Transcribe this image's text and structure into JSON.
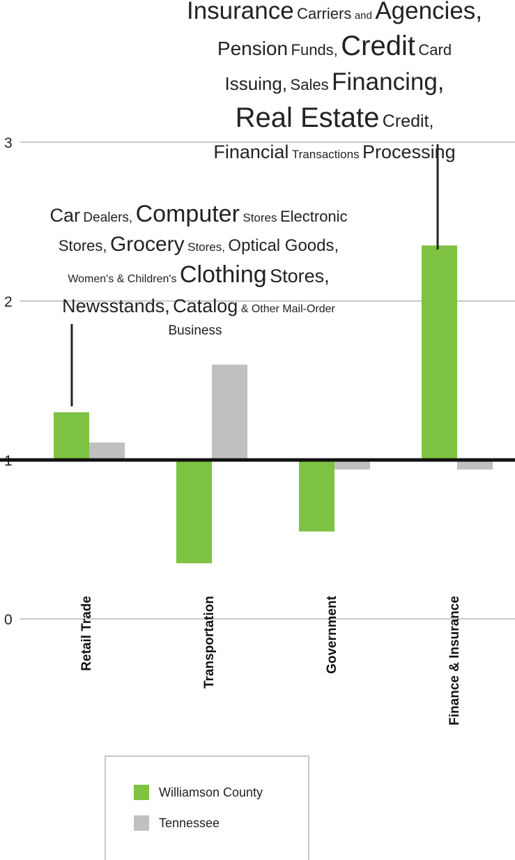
{
  "chart_data": {
    "type": "bar",
    "categories": [
      "Retail Trade",
      "Transportation",
      "Government",
      "Finance & Insurance"
    ],
    "series": [
      {
        "name": "Williamson County",
        "color": "#7dc242",
        "values": [
          1.3,
          0.35,
          0.55,
          2.35
        ]
      },
      {
        "name": "Tennessee",
        "color": "#c0c0c0",
        "values": [
          1.11,
          1.6,
          0.94,
          0.94
        ]
      }
    ],
    "baseline": 1,
    "ylim": [
      0,
      3
    ],
    "yticks": [
      "0",
      "1",
      "2",
      "3"
    ],
    "grid": true,
    "legend_position": "bottom-center",
    "annotations": [
      {
        "category": "Finance & Insurance",
        "text": "Insurance Carriers and Agencies, Pension Funds, Credit Card Issuing, Sales Financing, Real Estate Credit, Financial Transactions Processing"
      },
      {
        "category": "Retail Trade",
        "text": "Car Dealers, Computer Stores Electronic Stores, Grocery Stores, Optical Goods, Women's & Children's Clothing Stores, Newsstands, Catalog & Other Mail-Order Business"
      }
    ]
  },
  "colors": {
    "williamson": "#7dc242",
    "tennessee": "#c0c0c0",
    "grid": "#c8c8c8",
    "baseline": "#111111"
  },
  "legend": {
    "items": [
      {
        "label": "Williamson County"
      },
      {
        "label": "Tennessee"
      }
    ]
  },
  "ann_fin": {
    "p1": "Insurance",
    "p2": "Carriers",
    "p3": "and",
    "p4": "Agencies,",
    "p5": "Pension",
    "p6": "Funds,",
    "p7": "Credit",
    "p8": "Card",
    "p9": "Issuing,",
    "p10": "Sales",
    "p11": "Financing,",
    "p12": "Real Estate",
    "p13": "Credit,",
    "p14": "Financial",
    "p15": "Transactions",
    "p16": "Processing"
  },
  "ann_ret": {
    "p1": "Car",
    "p2": "Dealers,",
    "p3": "Computer",
    "p4": "Stores",
    "p5": "Electronic",
    "p6": "Stores,",
    "p7": "Grocery",
    "p8": "Stores,",
    "p9": "Optical Goods,",
    "p10": "Women's & Children's",
    "p11": "Clothing",
    "p12": "Stores,",
    "p13": "Newsstands,",
    "p14": "Catalog",
    "p15": "& Other Mail-Order",
    "p16": "Business"
  }
}
